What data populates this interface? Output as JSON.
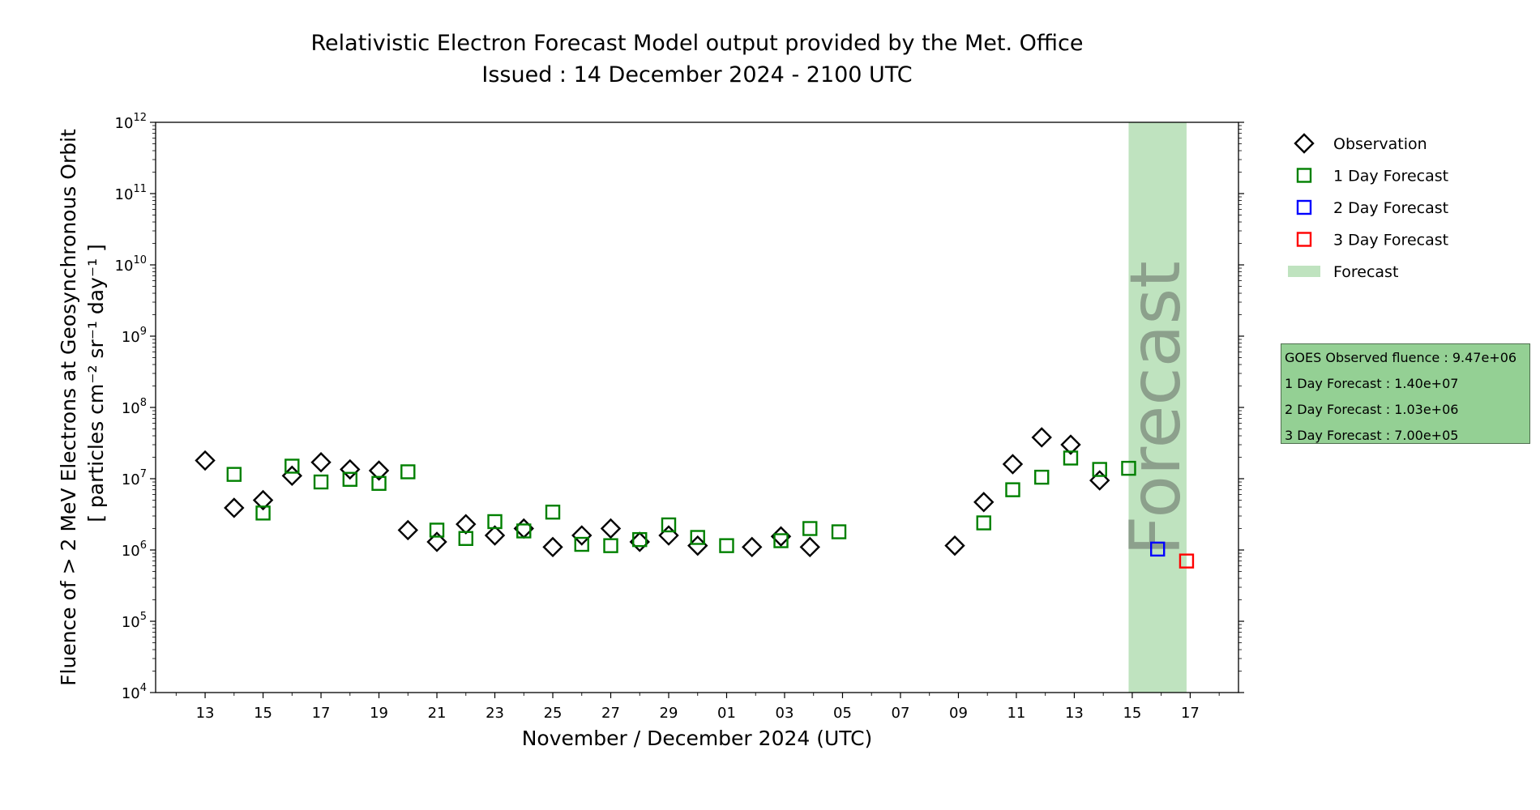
{
  "chart_data": {
    "type": "scatter",
    "title": "Relativistic Electron Forecast Model output provided by the Met. Office",
    "subtitle": "Issued : 14 December 2024 - 2100 UTC",
    "xlabel": "November / December 2024 (UTC)",
    "ylabel_line1": "Fluence of > 2 MeV Electrons at Geosynchronous Orbit",
    "ylabel_line2": "[ particles cm⁻² sr⁻¹ day⁻¹ ]",
    "y_scale": "log",
    "ylim": [
      10000,
      1000000000000
    ],
    "xlim": [
      "2024-11-11T07:00",
      "2024-12-18T16:00"
    ],
    "x_ticks": [
      {
        "date": "2024-11-13",
        "label": "13"
      },
      {
        "date": "2024-11-15",
        "label": "15"
      },
      {
        "date": "2024-11-17",
        "label": "17"
      },
      {
        "date": "2024-11-19",
        "label": "19"
      },
      {
        "date": "2024-11-21",
        "label": "21"
      },
      {
        "date": "2024-11-23",
        "label": "23"
      },
      {
        "date": "2024-11-25",
        "label": "25"
      },
      {
        "date": "2024-11-27",
        "label": "27"
      },
      {
        "date": "2024-11-29",
        "label": "29"
      },
      {
        "date": "2024-12-01",
        "label": "01"
      },
      {
        "date": "2024-12-03",
        "label": "03"
      },
      {
        "date": "2024-12-05",
        "label": "05"
      },
      {
        "date": "2024-12-07",
        "label": "07"
      },
      {
        "date": "2024-12-09",
        "label": "09"
      },
      {
        "date": "2024-12-11",
        "label": "11"
      },
      {
        "date": "2024-12-13",
        "label": "13"
      },
      {
        "date": "2024-12-15",
        "label": "15"
      },
      {
        "date": "2024-12-17",
        "label": "17"
      }
    ],
    "y_ticks": [
      {
        "value": 10000,
        "base": "10",
        "exp": "4"
      },
      {
        "value": 100000,
        "base": "10",
        "exp": "5"
      },
      {
        "value": 1000000,
        "base": "10",
        "exp": "6"
      },
      {
        "value": 10000000,
        "base": "10",
        "exp": "7"
      },
      {
        "value": 100000000,
        "base": "10",
        "exp": "8"
      },
      {
        "value": 1000000000,
        "base": "10",
        "exp": "9"
      },
      {
        "value": 10000000000,
        "base": "10",
        "exp": "10"
      },
      {
        "value": 100000000000,
        "base": "10",
        "exp": "11"
      },
      {
        "value": 1000000000000,
        "base": "10",
        "exp": "12"
      }
    ],
    "forecast_region": {
      "start": "2024-12-14T21:00",
      "end": "2024-12-16T21:00",
      "label": "Forecast",
      "color": "#bfe3bf"
    },
    "legend_position": "right",
    "series": [
      {
        "name": "Observation",
        "marker": "diamond",
        "color": "#000000",
        "points": [
          {
            "x": "2024-11-13T00:00",
            "y": 18000000
          },
          {
            "x": "2024-11-14T00:00",
            "y": 3900000
          },
          {
            "x": "2024-11-15T00:00",
            "y": 5000000
          },
          {
            "x": "2024-11-16T00:00",
            "y": 11000000
          },
          {
            "x": "2024-11-17T00:00",
            "y": 17000000
          },
          {
            "x": "2024-11-18T00:00",
            "y": 13500000
          },
          {
            "x": "2024-11-19T00:00",
            "y": 13000000
          },
          {
            "x": "2024-11-20T00:00",
            "y": 1900000
          },
          {
            "x": "2024-11-21T00:00",
            "y": 1300000
          },
          {
            "x": "2024-11-22T00:00",
            "y": 2300000
          },
          {
            "x": "2024-11-23T00:00",
            "y": 1600000
          },
          {
            "x": "2024-11-24T00:00",
            "y": 2000000
          },
          {
            "x": "2024-11-25T00:00",
            "y": 1100000
          },
          {
            "x": "2024-11-26T00:00",
            "y": 1600000
          },
          {
            "x": "2024-11-27T00:00",
            "y": 2000000
          },
          {
            "x": "2024-11-28T00:00",
            "y": 1300000
          },
          {
            "x": "2024-11-29T00:00",
            "y": 1600000
          },
          {
            "x": "2024-11-30T00:00",
            "y": 1150000
          },
          {
            "x": "2024-12-01T21:00",
            "y": 1100000
          },
          {
            "x": "2024-12-02T21:00",
            "y": 1550000
          },
          {
            "x": "2024-12-03T21:00",
            "y": 1100000
          },
          {
            "x": "2024-12-08T21:00",
            "y": 1150000
          },
          {
            "x": "2024-12-09T21:00",
            "y": 4700000
          },
          {
            "x": "2024-12-10T21:00",
            "y": 16000000
          },
          {
            "x": "2024-12-11T21:00",
            "y": 38000000
          },
          {
            "x": "2024-12-12T21:00",
            "y": 30000000
          },
          {
            "x": "2024-12-13T21:00",
            "y": 9470000
          }
        ]
      },
      {
        "name": "1 Day Forecast",
        "marker": "square",
        "color": "#008000",
        "points": [
          {
            "x": "2024-11-14T00:00",
            "y": 11500000
          },
          {
            "x": "2024-11-15T00:00",
            "y": 3300000
          },
          {
            "x": "2024-11-16T00:00",
            "y": 15000000
          },
          {
            "x": "2024-11-17T00:00",
            "y": 9000000
          },
          {
            "x": "2024-11-18T00:00",
            "y": 9800000
          },
          {
            "x": "2024-11-19T00:00",
            "y": 8600000
          },
          {
            "x": "2024-11-20T00:00",
            "y": 12500000
          },
          {
            "x": "2024-11-21T00:00",
            "y": 1900000
          },
          {
            "x": "2024-11-22T00:00",
            "y": 1450000
          },
          {
            "x": "2024-11-23T00:00",
            "y": 2500000
          },
          {
            "x": "2024-11-24T00:00",
            "y": 1850000
          },
          {
            "x": "2024-11-25T00:00",
            "y": 3400000
          },
          {
            "x": "2024-11-26T00:00",
            "y": 1200000
          },
          {
            "x": "2024-11-27T00:00",
            "y": 1150000
          },
          {
            "x": "2024-11-28T00:00",
            "y": 1400000
          },
          {
            "x": "2024-11-29T00:00",
            "y": 2250000
          },
          {
            "x": "2024-11-30T00:00",
            "y": 1500000
          },
          {
            "x": "2024-12-01T00:00",
            "y": 1150000
          },
          {
            "x": "2024-12-02T21:00",
            "y": 1350000
          },
          {
            "x": "2024-12-03T21:00",
            "y": 2000000
          },
          {
            "x": "2024-12-04T21:00",
            "y": 1800000
          },
          {
            "x": "2024-12-09T21:00",
            "y": 2400000
          },
          {
            "x": "2024-12-10T21:00",
            "y": 7000000
          },
          {
            "x": "2024-12-11T21:00",
            "y": 10500000
          },
          {
            "x": "2024-12-12T21:00",
            "y": 19500000
          },
          {
            "x": "2024-12-13T21:00",
            "y": 13500000
          },
          {
            "x": "2024-12-14T21:00",
            "y": 14000000
          }
        ]
      },
      {
        "name": "2 Day Forecast",
        "marker": "square",
        "color": "#0000ff",
        "points": [
          {
            "x": "2024-12-15T21:00",
            "y": 1030000
          }
        ]
      },
      {
        "name": "3 Day Forecast",
        "marker": "square",
        "color": "#ff0000",
        "points": [
          {
            "x": "2024-12-16T21:00",
            "y": 700000
          }
        ]
      }
    ],
    "legend": [
      {
        "label": "Observation",
        "marker": "diamond",
        "color": "#000000"
      },
      {
        "label": "1 Day Forecast",
        "marker": "square",
        "color": "#008000"
      },
      {
        "label": "2 Day Forecast",
        "marker": "square",
        "color": "#0000ff"
      },
      {
        "label": "3 Day Forecast",
        "marker": "square",
        "color": "#ff0000"
      },
      {
        "label": "Forecast",
        "marker": "patch",
        "color": "#bfe3bf"
      }
    ]
  },
  "info_box": {
    "lines": [
      "GOES Observed fluence : 9.47e+06",
      "1 Day Forecast : 1.40e+07",
      "2 Day Forecast : 1.03e+06",
      "3 Day Forecast : 7.00e+05"
    ],
    "background": "#94d094"
  }
}
